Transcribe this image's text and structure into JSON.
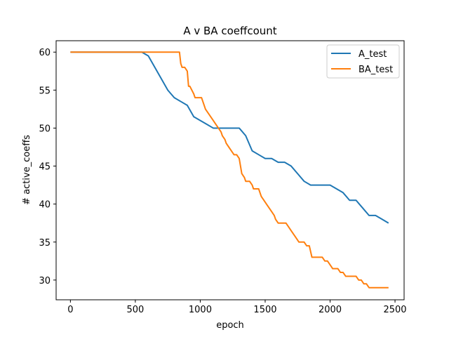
{
  "chart_data": {
    "type": "line",
    "title": "A v BA coeffcount",
    "xlabel": "epoch",
    "ylabel": "# active_coeffs",
    "xlim": [
      -110,
      2570
    ],
    "ylim": [
      27.4,
      61.5
    ],
    "xticks": [
      0,
      500,
      1000,
      1500,
      2000,
      2500
    ],
    "yticks": [
      30,
      35,
      40,
      45,
      50,
      55,
      60
    ],
    "grid": false,
    "legend_position": "top-right",
    "series": [
      {
        "name": "A_test",
        "color": "#1f77b4",
        "x": [
          0,
          550,
          600,
          650,
          700,
          750,
          800,
          850,
          900,
          950,
          1000,
          1050,
          1100,
          1150,
          1200,
          1250,
          1300,
          1350,
          1400,
          1450,
          1500,
          1550,
          1600,
          1650,
          1700,
          1750,
          1800,
          1850,
          1900,
          1950,
          2000,
          2050,
          2100,
          2150,
          2200,
          2250,
          2300,
          2350,
          2400,
          2450
        ],
        "y": [
          60,
          60,
          59.5,
          58,
          56.5,
          55,
          54,
          53.5,
          53,
          51.5,
          51,
          50.5,
          50,
          50,
          50,
          50,
          50,
          49,
          47,
          46.5,
          46,
          46,
          45.5,
          45.5,
          45,
          44,
          43,
          42.5,
          42.5,
          42.5,
          42.5,
          42,
          41.5,
          40.5,
          40.5,
          39.5,
          38.5,
          38.5,
          38,
          37.5
        ]
      },
      {
        "name": "BA_test",
        "color": "#ff7f0e",
        "x": [
          0,
          840,
          850,
          860,
          870,
          880,
          900,
          910,
          920,
          950,
          960,
          980,
          990,
          1000,
          1010,
          1030,
          1040,
          1060,
          1080,
          1100,
          1120,
          1140,
          1160,
          1170,
          1190,
          1200,
          1220,
          1240,
          1260,
          1270,
          1280,
          1300,
          1310,
          1320,
          1340,
          1350,
          1360,
          1370,
          1380,
          1400,
          1410,
          1430,
          1450,
          1470,
          1490,
          1510,
          1530,
          1550,
          1570,
          1580,
          1600,
          1620,
          1640,
          1660,
          1680,
          1700,
          1720,
          1740,
          1760,
          1780,
          1800,
          1820,
          1840,
          1860,
          1880,
          1900,
          1920,
          1940,
          1960,
          1980,
          2000,
          2020,
          2040,
          2060,
          2080,
          2100,
          2120,
          2140,
          2160,
          2180,
          2200,
          2220,
          2240,
          2260,
          2280,
          2300,
          2320,
          2340,
          2360,
          2380,
          2400,
          2420,
          2440,
          2450
        ],
        "y": [
          60,
          60,
          58.5,
          58,
          58,
          58,
          57.5,
          55.5,
          55.5,
          54.5,
          54,
          54,
          54,
          54,
          54,
          53,
          52.5,
          52,
          51.5,
          51,
          50.5,
          50,
          49.5,
          49,
          48.5,
          48,
          47.5,
          47,
          46.5,
          46.5,
          46.5,
          46,
          45,
          44,
          43.5,
          43,
          43,
          43,
          43,
          42.5,
          42,
          42,
          42,
          41,
          40.5,
          40,
          39.5,
          39,
          38.5,
          38,
          37.5,
          37.5,
          37.5,
          37.5,
          37,
          36.5,
          36,
          35.5,
          35,
          35,
          35,
          34.5,
          34.5,
          33,
          33,
          33,
          33,
          33,
          32.5,
          32.5,
          32,
          31.5,
          31.5,
          31.5,
          31,
          31,
          30.5,
          30.5,
          30.5,
          30.5,
          30.5,
          30,
          30,
          29.5,
          29.5,
          29,
          29,
          29,
          29,
          29,
          29,
          29,
          29,
          29
        ]
      }
    ]
  }
}
